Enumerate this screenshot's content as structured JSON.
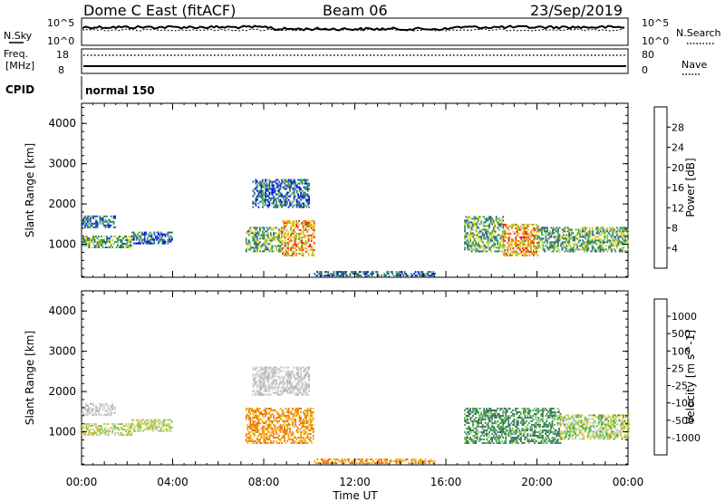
{
  "header": {
    "station": "Dome C East (fitACF)",
    "beam": "Beam 06",
    "date": "23/Sep/2019",
    "nsky_label": "N.Sky",
    "nsky_top": "10^5",
    "nsky_bottom": "10^0",
    "nsearch_label": "N.Search",
    "nsearch_top": "10^5",
    "nsearch_bottom": "10^0",
    "freq_label_1": "Freq.",
    "freq_label_2": "[MHz]",
    "freq_top": "18",
    "freq_bottom": "8",
    "nave_label": "Nave",
    "nave_top": "80",
    "nave_bottom": "0",
    "cpid_label": "CPID",
    "cpid_value": "normal 150"
  },
  "chart_data": [
    {
      "type": "heatmap",
      "name": "power",
      "xlabel": "Time UT",
      "ylabel": "Slant Range [km]",
      "x_ticks": [
        "00:00",
        "04:00",
        "08:00",
        "12:00",
        "16:00",
        "20:00",
        "00:00"
      ],
      "xlim_hours": [
        0,
        24
      ],
      "ylim": [
        180,
        4500
      ],
      "y_ticks": [
        1000,
        2000,
        3000,
        4000
      ],
      "colorbar": {
        "label": "Power [dB]",
        "ticks": [
          "4",
          "8",
          "12",
          "16",
          "20",
          "24",
          "28"
        ],
        "colors": [
          "#0000ff",
          "#1f5aa8",
          "#3a7d54",
          "#2e9e52",
          "#8fcf3a",
          "#f0d020",
          "#f5a000",
          "#f26b10",
          "#e8261c",
          "#ff0000"
        ]
      },
      "echo_regions": [
        {
          "t0": 0.0,
          "t1": 2.2,
          "r0": 900,
          "r1": 1200,
          "level": "medium"
        },
        {
          "t0": 0.0,
          "t1": 1.5,
          "r0": 1400,
          "r1": 1700,
          "level": "low"
        },
        {
          "t0": 2.2,
          "t1": 4.0,
          "r0": 1000,
          "r1": 1300,
          "level": "low"
        },
        {
          "t0": 7.2,
          "t1": 8.8,
          "r0": 800,
          "r1": 1400,
          "level": "medium"
        },
        {
          "t0": 8.8,
          "t1": 10.2,
          "r0": 700,
          "r1": 1600,
          "level": "high"
        },
        {
          "t0": 7.5,
          "t1": 10.0,
          "r0": 1900,
          "r1": 2600,
          "level": "low"
        },
        {
          "t0": 10.2,
          "t1": 15.5,
          "r0": 200,
          "r1": 300,
          "level": "low"
        },
        {
          "t0": 16.8,
          "t1": 18.5,
          "r0": 800,
          "r1": 1700,
          "level": "medium"
        },
        {
          "t0": 18.5,
          "t1": 20.0,
          "r0": 700,
          "r1": 1500,
          "level": "high"
        },
        {
          "t0": 20.0,
          "t1": 24.0,
          "r0": 800,
          "r1": 1400,
          "level": "medium"
        }
      ]
    },
    {
      "type": "heatmap",
      "name": "velocity",
      "xlabel": "Time UT",
      "ylabel": "Slant Range [km]",
      "x_ticks": [
        "00:00",
        "04:00",
        "08:00",
        "12:00",
        "16:00",
        "20:00",
        "00:00"
      ],
      "xlim_hours": [
        0,
        24
      ],
      "ylim": [
        180,
        4500
      ],
      "y_ticks": [
        1000,
        2000,
        3000,
        4000
      ],
      "colorbar": {
        "label": "Velocity [m s^-1]",
        "ticks": [
          "1000",
          "500",
          "100",
          "25",
          "-25",
          "-100",
          "-500",
          "-1000"
        ],
        "colors": [
          "#1a3fb0",
          "#3060b8",
          "#3a7d64",
          "#3fa050",
          "#7ad040",
          "#c8c8c8",
          "#f0c020",
          "#f5a000",
          "#f06a10",
          "#e62a1c",
          "#ff0000"
        ]
      },
      "echo_regions": [
        {
          "t0": 0.0,
          "t1": 2.2,
          "r0": 900,
          "r1": 1200,
          "level": "light-green"
        },
        {
          "t0": 0.0,
          "t1": 1.5,
          "r0": 1400,
          "r1": 1700,
          "level": "gray"
        },
        {
          "t0": 2.2,
          "t1": 4.0,
          "r0": 1000,
          "r1": 1300,
          "level": "light-green"
        },
        {
          "t0": 7.2,
          "t1": 10.2,
          "r0": 700,
          "r1": 1600,
          "level": "orange"
        },
        {
          "t0": 7.5,
          "t1": 10.0,
          "r0": 1900,
          "r1": 2600,
          "level": "gray"
        },
        {
          "t0": 10.2,
          "t1": 15.5,
          "r0": 200,
          "r1": 300,
          "level": "orange"
        },
        {
          "t0": 16.8,
          "t1": 21.0,
          "r0": 700,
          "r1": 1600,
          "level": "dark-green"
        },
        {
          "t0": 21.0,
          "t1": 24.0,
          "r0": 800,
          "r1": 1400,
          "level": "yellow-green"
        }
      ]
    }
  ]
}
